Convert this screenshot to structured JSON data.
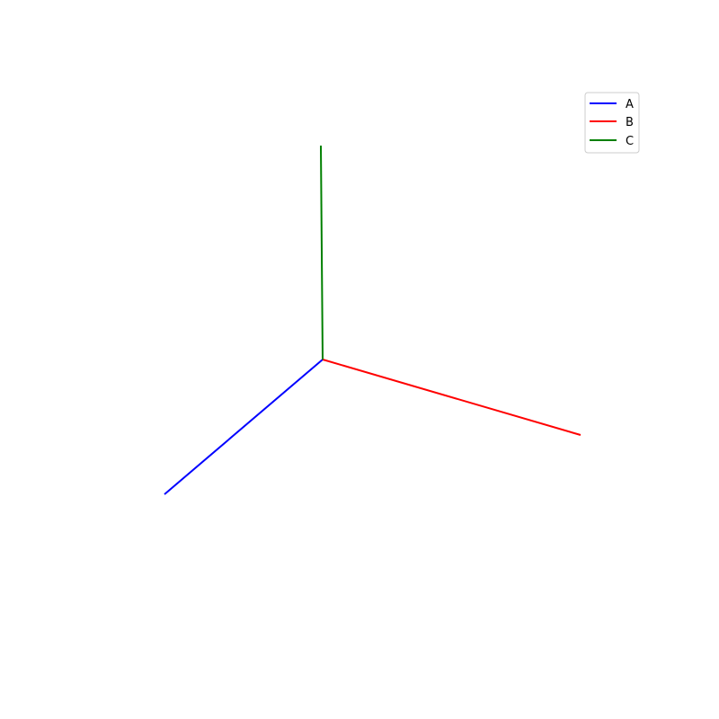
{
  "chart_data": {
    "type": "line",
    "projection": "3d-axes",
    "grid": false,
    "axes_visible": false,
    "legend_placement": "top-right",
    "series": [
      {
        "name": "A",
        "color": "#0000ff",
        "direction": "x",
        "length": 1
      },
      {
        "name": "B",
        "color": "#ff0000",
        "direction": "y",
        "length": 1
      },
      {
        "name": "C",
        "color": "#008000",
        "direction": "z",
        "length": 1
      }
    ]
  }
}
